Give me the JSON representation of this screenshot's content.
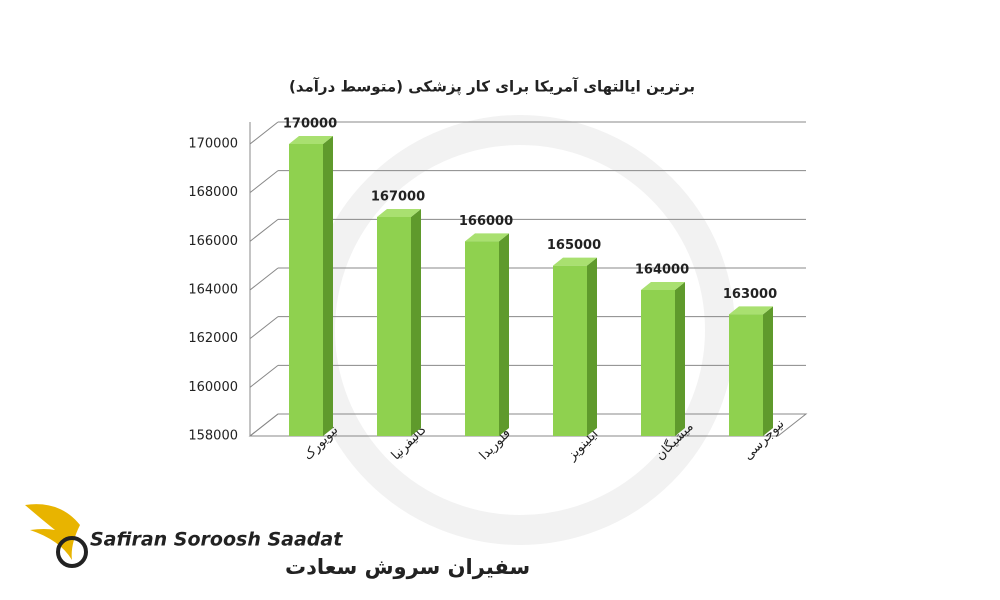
{
  "chart_data": {
    "type": "bar3d",
    "title": "برترین ایالتهای آمریکا برای کار پزشکی (متوسط درآمد)",
    "categories": [
      "نیویورک",
      "کالیفرنیا",
      "فلوریدا",
      "ایلینویز",
      "میشیگان",
      "نیوجرسی"
    ],
    "values": [
      170000,
      167000,
      166000,
      165000,
      164000,
      163000
    ],
    "color": "#8fd14f",
    "ylim": [
      158000,
      170000
    ],
    "yticks": [
      158000,
      160000,
      162000,
      164000,
      166000,
      168000,
      170000
    ],
    "grid": true
  },
  "logo": {
    "name_en": "Safiran Soroosh Saadat",
    "name_fa": "سفیران سروش سعادت"
  }
}
